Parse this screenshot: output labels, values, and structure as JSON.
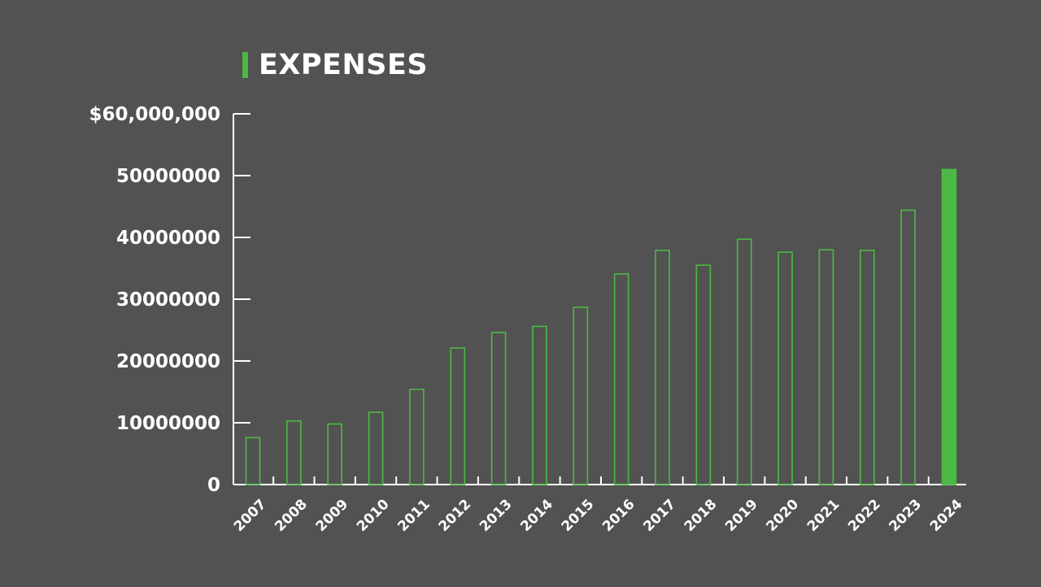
{
  "colors": {
    "background": "#525252",
    "accent": "#4cb944",
    "text": "#ffffff"
  },
  "chart_data": {
    "type": "bar",
    "title": "EXPENSES",
    "xlabel": "",
    "ylabel": "",
    "categories": [
      "2007",
      "2008",
      "2009",
      "2010",
      "2011",
      "2012",
      "2013",
      "2014",
      "2015",
      "2016",
      "2017",
      "2018",
      "2019",
      "2020",
      "2021",
      "2022",
      "2023",
      "2024"
    ],
    "values": [
      7600000,
      10300000,
      9800000,
      11700000,
      15400000,
      22100000,
      24600000,
      25600000,
      28700000,
      34100000,
      37900000,
      35500000,
      39700000,
      37600000,
      38000000,
      37900000,
      44400000,
      51000000
    ],
    "highlighted": [
      "2024"
    ],
    "ylim": [
      0,
      60000000
    ],
    "yticks": [
      0,
      10000000,
      20000000,
      30000000,
      40000000,
      50000000,
      60000000
    ],
    "ytick_labels": [
      "0",
      "10000000",
      "20000000",
      "30000000",
      "40000000",
      "50000000",
      "$60,000,000"
    ],
    "grid": false,
    "legend": "none",
    "bar_style": "outlined",
    "highlight_style": "filled"
  }
}
